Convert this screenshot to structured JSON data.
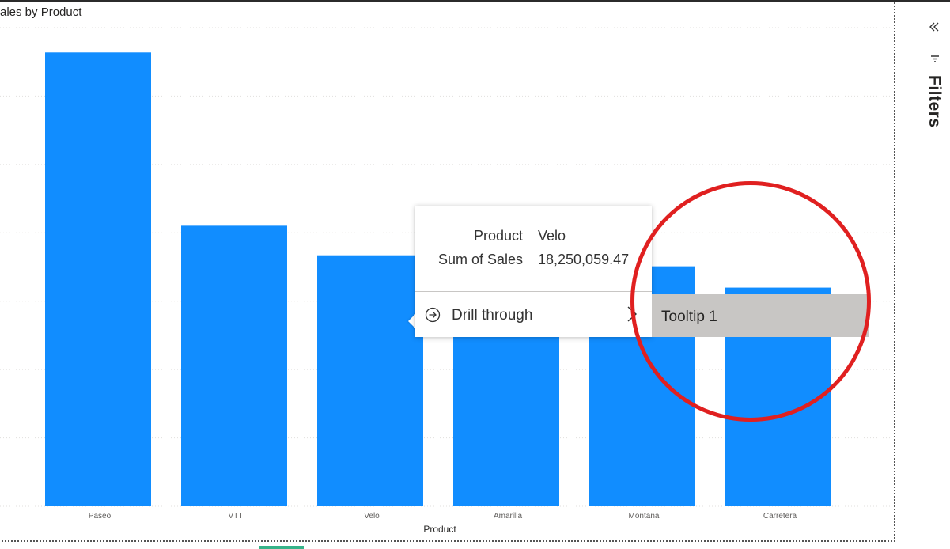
{
  "visual": {
    "title": "ales by Product"
  },
  "chart_data": {
    "type": "bar",
    "title": "ales by Product",
    "xlabel": "Product",
    "ylabel": "",
    "categories": [
      "Paseo",
      "VTT",
      "Velo",
      "Amarilla",
      "Montana",
      "Carretera"
    ],
    "values": [
      33000000,
      20400000,
      18250059.47,
      17800000,
      17450000,
      15900000
    ],
    "ylim": [
      0,
      34800000
    ],
    "grid": true,
    "bar_color": "#118dff"
  },
  "tooltip": {
    "rows": [
      {
        "key": "Product",
        "value": "Velo"
      },
      {
        "key": "Sum of Sales",
        "value": "18,250,059.47"
      }
    ],
    "drill_label": "Drill through",
    "drill_icon": "arrow-circle-right-icon",
    "submenu_item": "Tooltip 1"
  },
  "annotation": {
    "circle_color": "#e02020"
  },
  "filter_pane": {
    "collapse_icon": "double-chevron-left-icon",
    "label": "Filters"
  }
}
